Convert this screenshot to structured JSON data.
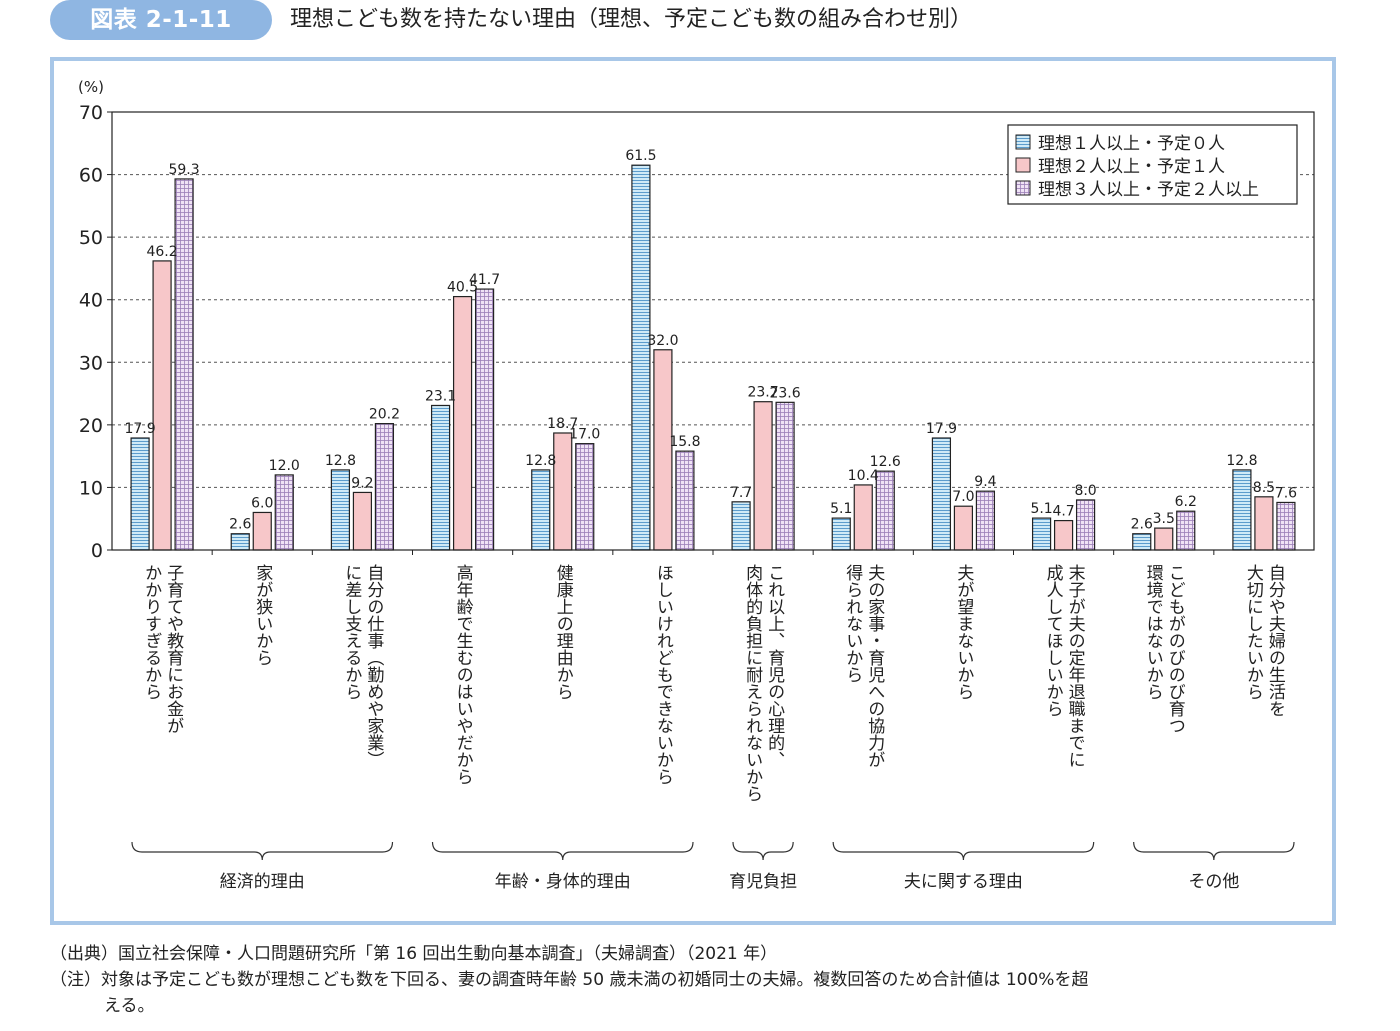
{
  "header": {
    "badge": "図表 2-1-11",
    "title": "理想こども数を持たない理由（理想、予定こども数の組み合わせ別）"
  },
  "footer": {
    "source": "（出典）国立社会保障・人口問題研究所「第 16 回出生動向基本調査」（夫婦調査）（2021 年）",
    "note": "（注）対象は予定こども数が理想こども数を下回る、妻の調査時年齢 50 歳未満の初婚同士の夫婦。複数回答のため合計値は 100%を超",
    "note_cont": "える。"
  },
  "chart_data": {
    "type": "bar",
    "ylabel": "(%)",
    "ylim": [
      0,
      70
    ],
    "yticks": [
      "0",
      "10",
      "20",
      "30",
      "40",
      "50",
      "60",
      "70"
    ],
    "grid": "dashed horizontal",
    "legend_position": "top-right",
    "categories": [
      [
        "子育てや教育にお金が",
        "かかりすぎるから"
      ],
      [
        "家が狭いから"
      ],
      [
        "自分の仕事（勤めや家業）",
        "に差し支えるから"
      ],
      [
        "高年齢で生むのはいやだから"
      ],
      [
        "健康上の理由から"
      ],
      [
        "ほしいけれどもできないから"
      ],
      [
        "これ以上、育児の心理的、",
        "肉体的負担に耐えられないから"
      ],
      [
        "夫の家事・育児への協力が",
        "得られないから"
      ],
      [
        "夫が望まないから"
      ],
      [
        "末子が夫の定年退職までに",
        "成人してほしいから"
      ],
      [
        "こどもがのびのび育つ",
        "環境ではないから"
      ],
      [
        "自分や夫婦の生活を",
        "大切にしたいから"
      ]
    ],
    "series": [
      {
        "name": "理想１人以上・予定０人",
        "color": "#bfe3f5",
        "pattern": "horizontal-lines",
        "values": [
          17.9,
          2.6,
          12.8,
          23.1,
          12.8,
          61.5,
          7.7,
          5.1,
          17.9,
          5.1,
          2.6,
          12.8
        ],
        "labels": [
          "17.9",
          "2.6",
          "12.8",
          "23.1",
          "12.8",
          "61.5",
          "7.7",
          "5.1",
          "17.9",
          "5.1",
          "2.6",
          "12.8"
        ]
      },
      {
        "name": "理想２人以上・予定１人",
        "color": "#f7c7c9",
        "pattern": "solid",
        "values": [
          46.2,
          6.0,
          9.2,
          40.5,
          18.7,
          32.0,
          23.7,
          10.4,
          7.0,
          4.7,
          3.5,
          8.5
        ],
        "labels": [
          "46.2",
          "6.0",
          "9.2",
          "40.5",
          "18.7",
          "32.0",
          "23.7",
          "10.4",
          "7.0",
          "4.7",
          "3.5",
          "8.5"
        ]
      },
      {
        "name": "理想３人以上・予定２人以上",
        "color": "#e7d6ef",
        "pattern": "grid",
        "values": [
          59.3,
          12.0,
          20.2,
          41.7,
          17.0,
          15.8,
          23.6,
          12.6,
          9.4,
          8.0,
          6.2,
          7.6
        ],
        "labels": [
          "59.3",
          "12.0",
          "20.2",
          "41.7",
          "17.0",
          "15.8",
          "23.6",
          "12.6",
          "9.4",
          "8.0",
          "6.2",
          "7.6"
        ]
      }
    ],
    "groups": [
      {
        "label": "経済的理由",
        "from": 0,
        "to": 2
      },
      {
        "label": "年齢・身体的理由",
        "from": 3,
        "to": 5
      },
      {
        "label": "育児負担",
        "from": 6,
        "to": 6
      },
      {
        "label": "夫に関する理由",
        "from": 7,
        "to": 9
      },
      {
        "label": "その他",
        "from": 10,
        "to": 11
      }
    ]
  }
}
